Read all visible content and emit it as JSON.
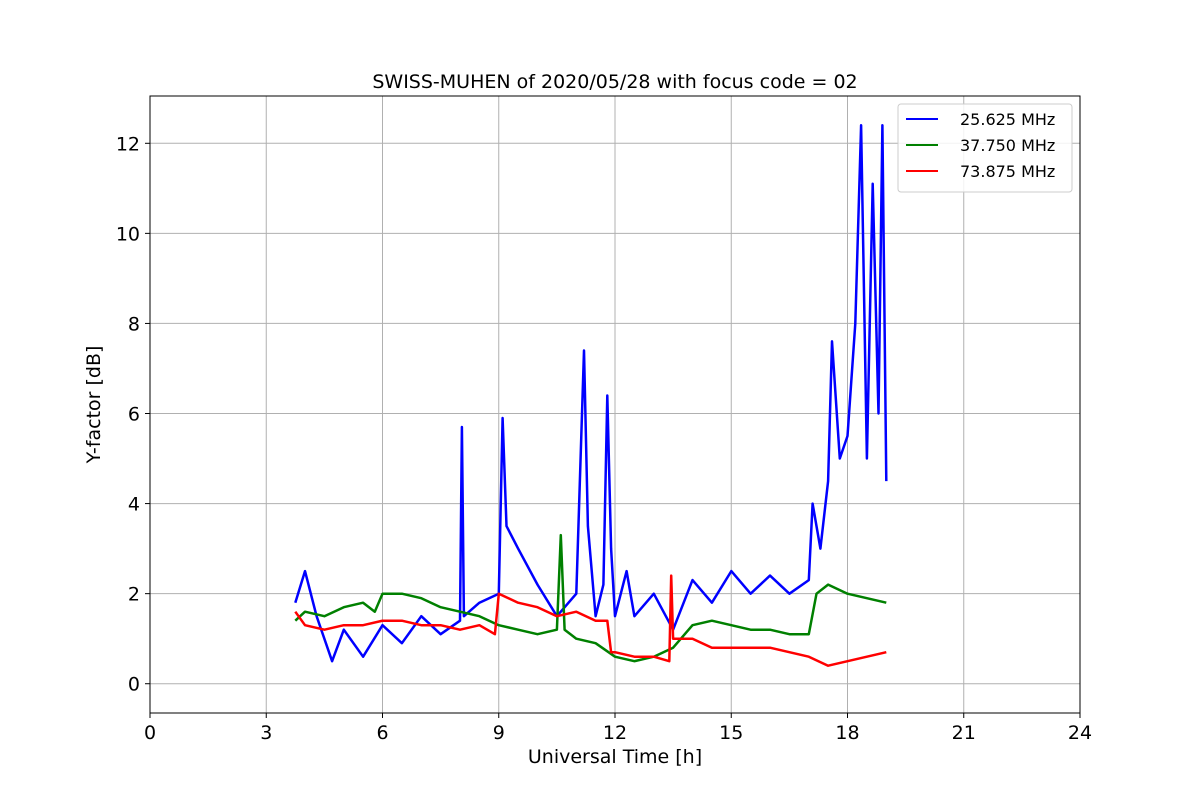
{
  "chart_data": {
    "type": "line",
    "title": "SWISS-MUHEN of 2020/05/28 with focus code = 02",
    "xlabel": "Universal Time [h]",
    "ylabel": "Y-factor [dB]",
    "xlim": [
      0,
      24
    ],
    "ylim": [
      -0.65,
      13.05
    ],
    "xticks": [
      0,
      3,
      6,
      9,
      12,
      15,
      18,
      21,
      24
    ],
    "yticks": [
      0,
      2,
      4,
      6,
      8,
      10,
      12
    ],
    "grid": true,
    "legend_position": "top-right",
    "series": [
      {
        "name": "25.625 MHz",
        "color": "#0000ff",
        "x": [
          3.75,
          4.0,
          4.3,
          4.7,
          5.0,
          5.5,
          6.0,
          6.5,
          7.0,
          7.5,
          8.0,
          8.05,
          8.1,
          8.5,
          9.0,
          9.1,
          9.2,
          9.5,
          10.0,
          10.5,
          11.0,
          11.2,
          11.3,
          11.5,
          11.7,
          11.8,
          11.9,
          12.0,
          12.3,
          12.5,
          13.0,
          13.5,
          14.0,
          14.5,
          15.0,
          15.5,
          16.0,
          16.5,
          17.0,
          17.1,
          17.3,
          17.5,
          17.6,
          17.8,
          18.0,
          18.2,
          18.35,
          18.5,
          18.65,
          18.8,
          18.9,
          19.0
        ],
        "y": [
          1.8,
          2.5,
          1.5,
          0.5,
          1.2,
          0.6,
          1.3,
          0.9,
          1.5,
          1.1,
          1.4,
          5.7,
          1.5,
          1.8,
          2.0,
          5.9,
          3.5,
          3.0,
          2.2,
          1.5,
          2.0,
          7.4,
          3.5,
          1.5,
          2.2,
          6.4,
          3.0,
          1.5,
          2.5,
          1.5,
          2.0,
          1.2,
          2.3,
          1.8,
          2.5,
          2.0,
          2.4,
          2.0,
          2.3,
          4.0,
          3.0,
          4.5,
          7.6,
          5.0,
          5.5,
          8.0,
          12.4,
          5.0,
          11.1,
          6.0,
          12.4,
          4.5
        ]
      },
      {
        "name": "37.750 MHz",
        "color": "#008000",
        "x": [
          3.75,
          4.0,
          4.5,
          5.0,
          5.5,
          5.8,
          6.0,
          6.5,
          7.0,
          7.5,
          8.0,
          8.5,
          9.0,
          9.5,
          10.0,
          10.5,
          10.6,
          10.7,
          11.0,
          11.5,
          12.0,
          12.5,
          13.0,
          13.5,
          14.0,
          14.5,
          15.0,
          15.5,
          16.0,
          16.5,
          17.0,
          17.2,
          17.5,
          18.0,
          18.5,
          19.0
        ],
        "y": [
          1.4,
          1.6,
          1.5,
          1.7,
          1.8,
          1.6,
          2.0,
          2.0,
          1.9,
          1.7,
          1.6,
          1.5,
          1.3,
          1.2,
          1.1,
          1.2,
          3.3,
          1.2,
          1.0,
          0.9,
          0.6,
          0.5,
          0.6,
          0.8,
          1.3,
          1.4,
          1.3,
          1.2,
          1.2,
          1.1,
          1.1,
          2.0,
          2.2,
          2.0,
          1.9,
          1.8
        ]
      },
      {
        "name": "73.875 MHz",
        "color": "#ff0000",
        "x": [
          3.75,
          4.0,
          4.5,
          5.0,
          5.5,
          6.0,
          6.5,
          7.0,
          7.5,
          8.0,
          8.5,
          8.9,
          9.0,
          9.5,
          10.0,
          10.5,
          11.0,
          11.5,
          11.8,
          11.9,
          12.0,
          12.5,
          13.0,
          13.4,
          13.45,
          13.5,
          14.0,
          14.5,
          15.0,
          15.5,
          16.0,
          16.5,
          17.0,
          17.5,
          18.0,
          18.5,
          19.0
        ],
        "y": [
          1.6,
          1.3,
          1.2,
          1.3,
          1.3,
          1.4,
          1.4,
          1.3,
          1.3,
          1.2,
          1.3,
          1.1,
          2.0,
          1.8,
          1.7,
          1.5,
          1.6,
          1.4,
          1.4,
          0.7,
          0.7,
          0.6,
          0.6,
          0.5,
          2.4,
          1.0,
          1.0,
          0.8,
          0.8,
          0.8,
          0.8,
          0.7,
          0.6,
          0.4,
          0.5,
          0.6,
          0.7
        ]
      }
    ]
  }
}
